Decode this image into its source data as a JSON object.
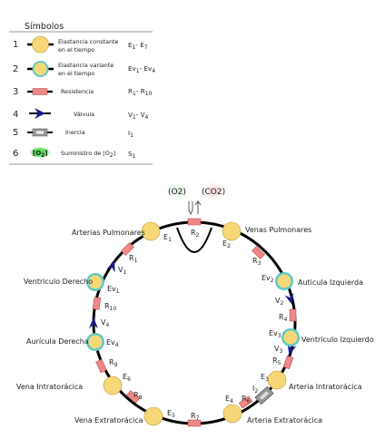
{
  "legend": {
    "title": "Símbolos",
    "rows": [
      {
        "num": "1",
        "desc1": "Elastancia constante",
        "desc2": "en el tiempo",
        "code": "E",
        "code_sub": "1",
        "code_mid": "- E",
        "code_sub2": "7"
      },
      {
        "num": "2",
        "desc1": "Elastancia variante",
        "desc2": "en el tiempo",
        "code": "Ev",
        "code_sub": "1",
        "code_mid": "- Ev",
        "code_sub2": "4"
      },
      {
        "num": "3",
        "desc1": "Resistencia",
        "desc2": "",
        "code": "R",
        "code_sub": "1",
        "code_mid": "- R",
        "code_sub2": "10"
      },
      {
        "num": "4",
        "desc1": "Válvula",
        "desc2": "",
        "code": "V",
        "code_sub": "1",
        "code_mid": "- V",
        "code_sub2": "4"
      },
      {
        "num": "5",
        "desc1": "Inercia",
        "desc2": "",
        "code": "I",
        "code_sub": "1",
        "code_mid": "",
        "code_sub2": ""
      },
      {
        "num": "6",
        "desc1": "Suministro de [O",
        "desc1_sub": "2",
        "desc1_end": "]",
        "desc2": "",
        "code": "S",
        "code_sub": "1",
        "code_mid": "",
        "code_sub2": "",
        "icon_text": "[O",
        "icon_sub": "2",
        "icon_end": "]"
      }
    ]
  },
  "gases": {
    "o2": "(O2)",
    "co2": "(CO2)"
  },
  "colors": {
    "elastance": "#f6d878",
    "variant": "#5fc9c9",
    "resistance": "#ee8888",
    "valve": "#1a1a8c",
    "o2_glow": "#44dd44",
    "o2_bubble": "#cfeed0",
    "co2_bubble": "#f6c6c6"
  },
  "nodes": {
    "arterias_pulmonares": "Arterias Pulmonares",
    "venas_pulmonares": "Venas Pulmonares",
    "ventriculo_derecho": "Ventriculo Derecho",
    "auricula_izquierda": "Auticula Izquierda",
    "auricula_derecha": "Aurícula Derecha",
    "ventriculo_izquierdo": "Ventriculo Izquierdo",
    "vena_intratoracica": "Vena Intratorácica",
    "arteria_intratoracica": "Arteria Intratorácica",
    "vena_extratoracica": "Vena Extratorácica",
    "arteria_extratoracica": "Arteria Extratorácica"
  },
  "symbols": {
    "E": "E",
    "Ev": "Ev",
    "R": "R",
    "V": "V",
    "I": "I",
    "E1": "1",
    "E2": "2",
    "E3": "3",
    "E4": "4",
    "E5": "5",
    "E6": "6",
    "Ev1": "1",
    "Ev2": "2",
    "Ev3": "3",
    "Ev4": "4",
    "R1": "1",
    "R2": "2",
    "R3": "3",
    "R4": "4",
    "R5": "5",
    "R6": "6",
    "R7": "7",
    "R8": "8",
    "R9": "9",
    "R10": "10",
    "V1": "1",
    "V2": "2",
    "V3": "3",
    "V4": "4",
    "I2": "2"
  }
}
